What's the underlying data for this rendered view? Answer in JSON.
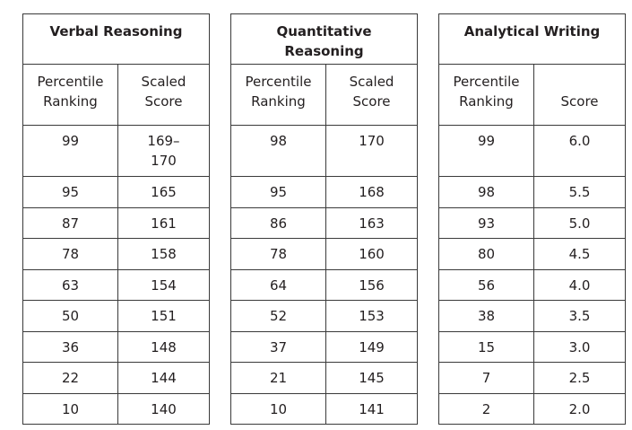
{
  "tables": [
    {
      "title": "Verbal Reasoning",
      "col1_header": "Percentile\nRanking",
      "col2_header": "Scaled\nScore",
      "rows": [
        [
          "99",
          "169–\n170"
        ],
        [
          "95",
          "165"
        ],
        [
          "87",
          "161"
        ],
        [
          "78",
          "158"
        ],
        [
          "63",
          "154"
        ],
        [
          "50",
          "151"
        ],
        [
          "36",
          "148"
        ],
        [
          "22",
          "144"
        ],
        [
          "10",
          "140"
        ]
      ]
    },
    {
      "title": "Quantitative\nReasoning",
      "col1_header": "Percentile\nRanking",
      "col2_header": "Scaled\nScore",
      "rows": [
        [
          "98",
          "170"
        ],
        [
          "95",
          "168"
        ],
        [
          "86",
          "163"
        ],
        [
          "78",
          "160"
        ],
        [
          "64",
          "156"
        ],
        [
          "52",
          "153"
        ],
        [
          "37",
          "149"
        ],
        [
          "21",
          "145"
        ],
        [
          "10",
          "141"
        ]
      ]
    },
    {
      "title": "Analytical Writing",
      "col1_header": "Percentile\nRanking",
      "col2_header": "Score",
      "rows": [
        [
          "99",
          "6.0"
        ],
        [
          "98",
          "5.5"
        ],
        [
          "93",
          "5.0"
        ],
        [
          "80",
          "4.5"
        ],
        [
          "56",
          "4.0"
        ],
        [
          "38",
          "3.5"
        ],
        [
          "15",
          "3.0"
        ],
        [
          "7",
          "2.5"
        ],
        [
          "2",
          "2.0"
        ]
      ]
    }
  ]
}
